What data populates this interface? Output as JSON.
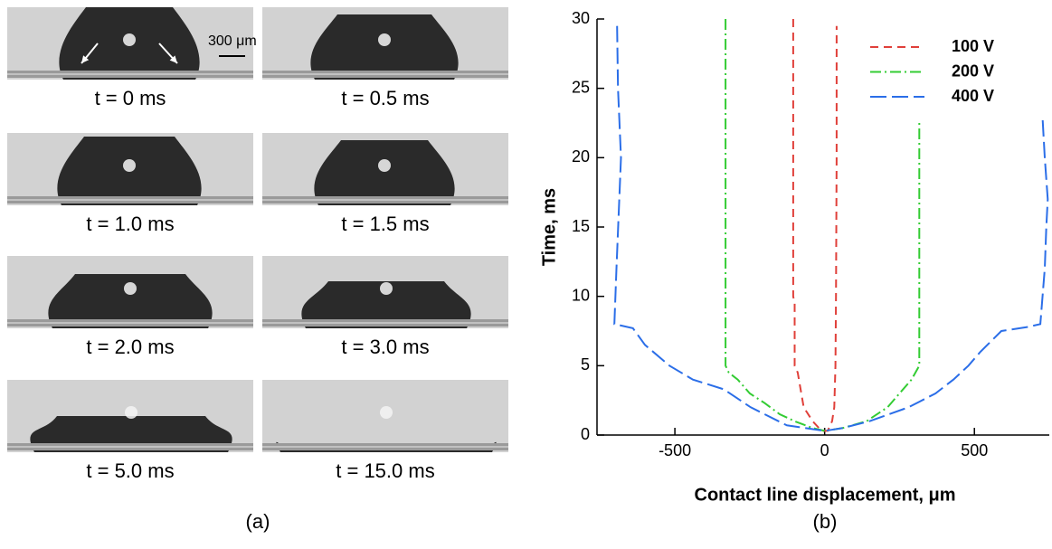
{
  "panel_a": {
    "scale_bar": "300 μm",
    "caption": "(a)",
    "frames": [
      "t = 0 ms",
      "t = 0.5 ms",
      "t = 1.0 ms",
      "t = 1.5 ms",
      "t = 2.0 ms",
      "t = 3.0 ms",
      "t = 5.0 ms",
      "t = 15.0 ms"
    ]
  },
  "chart_data": {
    "type": "line",
    "caption": "(b)",
    "x_label": "Contact line displacement, μm",
    "y_label": "Time, ms",
    "xlim": [
      -760,
      750
    ],
    "xticks": [
      -500,
      0,
      500
    ],
    "ylim": [
      0,
      30
    ],
    "yticks": [
      0,
      5,
      10,
      15,
      20,
      25,
      30
    ],
    "legend": "top-right",
    "series": [
      {
        "name": "100 V",
        "color": "#e0403a",
        "style": "dashed",
        "x": [
          -105,
          -105,
          -100,
          -100,
          -90,
          -70,
          -40,
          -10,
          10,
          25,
          32,
          36,
          38,
          40,
          40
        ],
        "values": [
          30,
          10,
          9.5,
          5,
          4.5,
          2,
          1,
          0.3,
          0.3,
          1,
          2,
          5,
          10,
          20,
          29.5
        ]
      },
      {
        "name": "200 V",
        "color": "#33cc33",
        "style": "dashdot",
        "x": [
          -331,
          -331,
          -320,
          -290,
          -250,
          -200,
          -150,
          -100,
          -40,
          0,
          60,
          140,
          210,
          250,
          290,
          316,
          316
        ],
        "values": [
          30,
          5,
          4.5,
          4,
          3,
          2.3,
          1.5,
          1,
          0.5,
          0.3,
          0.5,
          1,
          2,
          3,
          4,
          5,
          22.7
        ]
      },
      {
        "name": "400 V",
        "color": "#2b6ee8",
        "style": "longdash",
        "x": [
          -693,
          -690,
          -680,
          -695,
          -702,
          -640,
          -600,
          -518,
          -440,
          -337,
          -247,
          -126,
          0,
          60,
          150,
          280,
          370,
          430,
          480,
          520,
          590,
          680,
          720,
          735,
          740,
          745,
          735,
          728
        ],
        "values": [
          29.5,
          25,
          20,
          12,
          8,
          7.7,
          6.5,
          5,
          4,
          3.3,
          2,
          0.7,
          0.3,
          0.5,
          1,
          2,
          3,
          4,
          5,
          6,
          7.5,
          7.8,
          8,
          12,
          15,
          17,
          20,
          22.7
        ]
      }
    ]
  }
}
